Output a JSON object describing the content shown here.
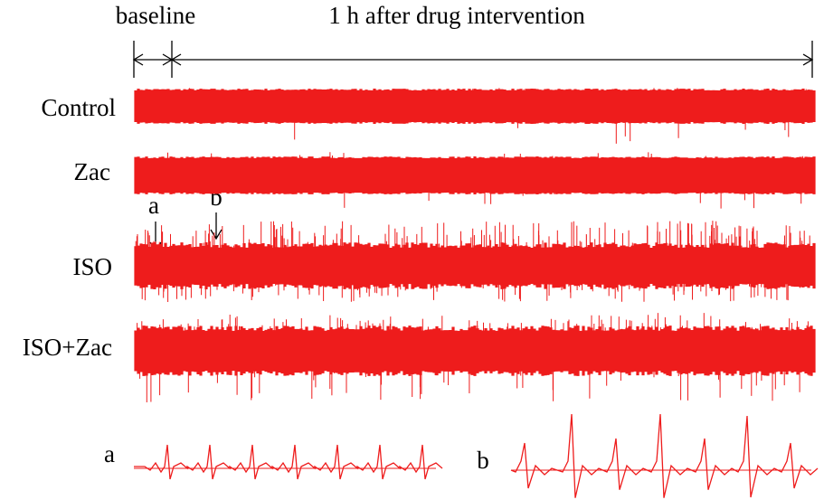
{
  "header": {
    "baseline": "baseline",
    "intervention": "1 h after drug intervention"
  },
  "traces": [
    {
      "label": "Control"
    },
    {
      "label": "Zac"
    },
    {
      "label": "ISO"
    },
    {
      "label": "ISO+Zac"
    }
  ],
  "markers": [
    "a",
    "b"
  ],
  "insets": [
    {
      "label": "a"
    },
    {
      "label": "b"
    }
  ]
}
